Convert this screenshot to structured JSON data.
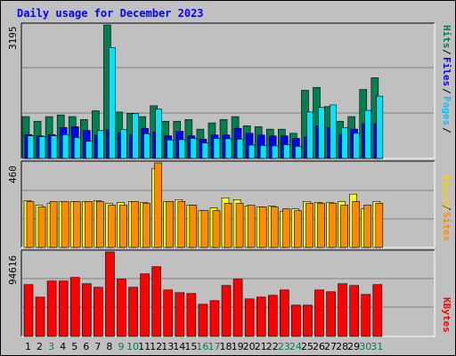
{
  "title": "Daily usage for December 2023",
  "colors": {
    "hits": "#007f4f",
    "files": "#0000ff",
    "pages": "#00e5ff",
    "visits": "#ff8c00",
    "sites": "#ffff00",
    "kbytes": "#ff0000",
    "weekday_label": "#000000",
    "weekend_label": "#007f4f"
  },
  "panels": {
    "top": {
      "max_label": "3195",
      "legend": [
        "Pages",
        "Files",
        "Hits"
      ]
    },
    "middle": {
      "max_label": "460",
      "legend": [
        "Sites",
        "Visits"
      ]
    },
    "bottom": {
      "max_label": "94616",
      "legend": [
        "KBytes"
      ]
    }
  },
  "chart_data": {
    "type": "bar",
    "categories": [
      "1",
      "2",
      "3",
      "4",
      "5",
      "6",
      "7",
      "8",
      "9",
      "10",
      "11",
      "12",
      "13",
      "14",
      "15",
      "16",
      "17",
      "18",
      "19",
      "20",
      "21",
      "22",
      "23",
      "24",
      "25",
      "26",
      "27",
      "28",
      "29",
      "30",
      "31"
    ],
    "weekend_days": [
      "3",
      "9",
      "10",
      "16",
      "17",
      "23",
      "24",
      "30",
      "31"
    ],
    "series": [
      {
        "name": "Hits",
        "panel": "top",
        "ymax": 3195,
        "values": [
          1000,
          890,
          1000,
          1040,
          1000,
          930,
          1140,
          3195,
          1110,
          1080,
          1000,
          1260,
          890,
          890,
          930,
          700,
          850,
          930,
          1000,
          780,
          760,
          700,
          700,
          600,
          1630,
          1700,
          1240,
          890,
          1000,
          1650,
          1930
        ]
      },
      {
        "name": "Files",
        "panel": "top",
        "ymax": 3195,
        "values": [
          570,
          540,
          570,
          740,
          760,
          670,
          560,
          690,
          620,
          560,
          720,
          630,
          540,
          650,
          540,
          460,
          560,
          560,
          720,
          600,
          560,
          540,
          540,
          480,
          520,
          780,
          740,
          570,
          700,
          830,
          830
        ]
      },
      {
        "name": "Pages",
        "panel": "top",
        "ymax": 3195,
        "values": [
          540,
          520,
          540,
          570,
          500,
          410,
          670,
          2650,
          690,
          1070,
          590,
          1180,
          440,
          450,
          480,
          370,
          480,
          470,
          460,
          320,
          310,
          300,
          330,
          290,
          1110,
          1220,
          1280,
          740,
          600,
          1150,
          1490
        ]
      },
      {
        "name": "Visits",
        "panel": "middle",
        "ymax": 460,
        "values": [
          250,
          220,
          250,
          250,
          250,
          250,
          250,
          230,
          230,
          250,
          240,
          460,
          250,
          250,
          230,
          200,
          200,
          240,
          240,
          230,
          220,
          220,
          210,
          200,
          240,
          240,
          240,
          230,
          250,
          230,
          240
        ]
      },
      {
        "name": "Sites",
        "panel": "middle",
        "ymax": 460,
        "values": [
          255,
          230,
          240,
          250,
          250,
          250,
          255,
          240,
          245,
          250,
          245,
          430,
          250,
          260,
          230,
          200,
          215,
          270,
          260,
          225,
          220,
          225,
          195,
          210,
          250,
          245,
          245,
          250,
          290,
          210,
          250
        ]
      },
      {
        "name": "KBytes",
        "panel": "bottom",
        "ymax": 94616,
        "values": [
          58000,
          44000,
          62000,
          62000,
          66000,
          59000,
          55000,
          94616,
          64000,
          55000,
          70000,
          78000,
          52000,
          49000,
          48000,
          36000,
          40000,
          57000,
          64000,
          42000,
          44000,
          46000,
          52000,
          35000,
          35000,
          52000,
          50000,
          59000,
          57000,
          47000,
          58000
        ]
      }
    ]
  }
}
